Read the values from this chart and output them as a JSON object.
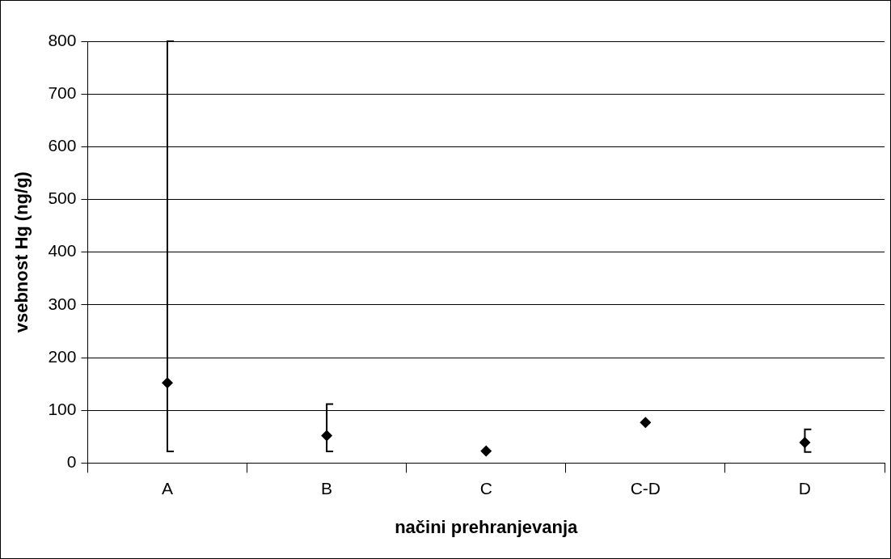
{
  "chart_data": {
    "type": "scatter",
    "xlabel": "načini prehranjevanja",
    "ylabel": "vsebnost Hg (ng/g)",
    "categories": [
      "A",
      "B",
      "C",
      "C-D",
      "D"
    ],
    "values": [
      152,
      52,
      23,
      77,
      39
    ],
    "errors": [
      [
        22,
        800
      ],
      [
        22,
        112
      ],
      null,
      null,
      [
        21,
        64
      ]
    ],
    "color": "#000000",
    "marker": "diamond",
    "ylim": [
      0,
      800
    ],
    "yticks": [
      0,
      100,
      200,
      300,
      400,
      500,
      600,
      700,
      800
    ],
    "grid": "y",
    "legend": false
  }
}
